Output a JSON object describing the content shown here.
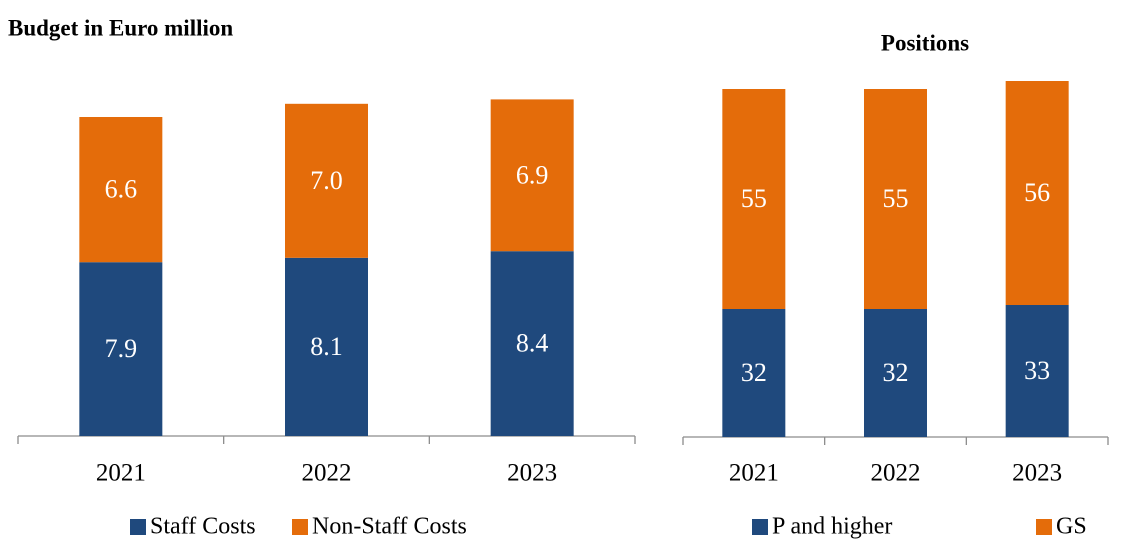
{
  "chart_data": [
    {
      "type": "bar",
      "stacked": true,
      "title": "Budget in Euro million",
      "categories": [
        "2021",
        "2022",
        "2023"
      ],
      "series": [
        {
          "name": "Staff Costs",
          "color": "#1f497d",
          "values": [
            7.9,
            8.1,
            8.4
          ]
        },
        {
          "name": "Non-Staff Costs",
          "color": "#e46c0a",
          "values": [
            6.6,
            7.0,
            6.9
          ],
          "value_labels": [
            "6.6",
            "7.0",
            "6.9"
          ]
        }
      ]
    },
    {
      "type": "bar",
      "stacked": true,
      "title": "Positions",
      "categories": [
        "2021",
        "2022",
        "2023"
      ],
      "series": [
        {
          "name": "P and higher",
          "color": "#1f497d",
          "values": [
            32,
            32,
            33
          ]
        },
        {
          "name": "GS",
          "color": "#e46c0a",
          "values": [
            55,
            55,
            56
          ]
        }
      ]
    }
  ]
}
